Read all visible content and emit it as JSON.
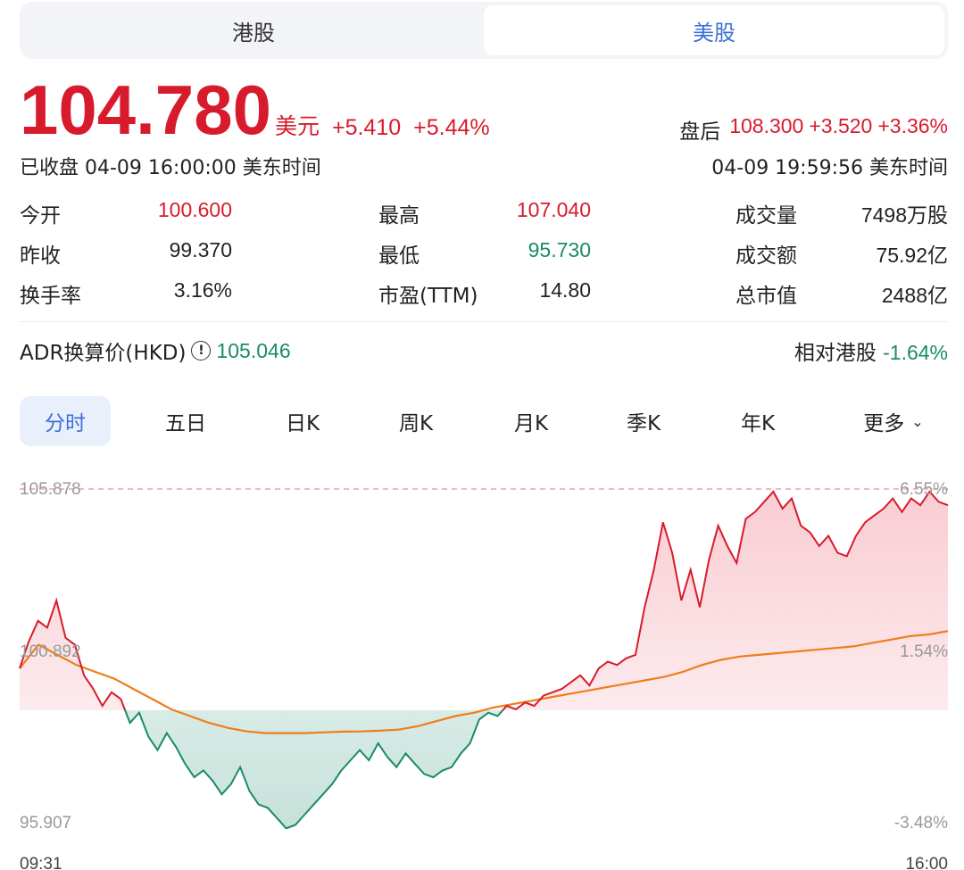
{
  "market_tabs": [
    {
      "label": "港股",
      "active": false
    },
    {
      "label": "美股",
      "active": true
    }
  ],
  "quote": {
    "price": "104.780",
    "currency": "美元",
    "change": "+5.410",
    "change_pct": "+5.44%",
    "status_time": "已收盘 04-09 16:00:00 美东时间",
    "after_hours": {
      "label": "盘后",
      "price": "108.300",
      "change": "+3.520",
      "change_pct": "+3.36%",
      "time": "04-09 19:59:56 美东时间"
    }
  },
  "stats": {
    "open": {
      "label": "今开",
      "value": "100.600"
    },
    "prev_close": {
      "label": "昨收",
      "value": "99.370"
    },
    "turnover_rate": {
      "label": "换手率",
      "value": "3.16%"
    },
    "high": {
      "label": "最高",
      "value": "107.040"
    },
    "low": {
      "label": "最低",
      "value": "95.730"
    },
    "pe": {
      "label": "市盈(TTM)",
      "value": "14.80"
    },
    "volume": {
      "label": "成交量",
      "value": "7498万股"
    },
    "amount": {
      "label": "成交额",
      "value": "75.92亿"
    },
    "market_cap": {
      "label": "总市值",
      "value": "2488亿"
    }
  },
  "adr": {
    "label": "ADR换算价(HKD)",
    "value": "105.046",
    "relative_label": "相对港股",
    "relative_value": "-1.64%"
  },
  "period_tabs": [
    "分时",
    "五日",
    "日K",
    "周K",
    "月K",
    "季K",
    "年K",
    "更多"
  ],
  "active_period": "分时",
  "colors": {
    "up": "#d81b2c",
    "down": "#1a8a6a",
    "accent": "#3b6fd8",
    "avg_line": "#ef7d1a"
  },
  "chart_data": {
    "type": "line",
    "x_start": "09:31",
    "x_end": "16:00",
    "y_max_label": "105.878",
    "y_mid_label": "100.892",
    "y_min_label": "95.907",
    "pct_max_label": "6.55%",
    "pct_mid_label": "1.54%",
    "pct_min_label": "-3.48%",
    "ylim": [
      95.907,
      105.878
    ],
    "reference_line": 105.878,
    "series": [
      {
        "values": [
          100.6,
          101.4,
          102.0,
          101.8,
          102.6,
          101.5,
          101.3,
          100.4,
          100.0,
          99.5,
          99.9,
          99.7,
          99.0,
          99.3,
          98.6,
          98.2,
          98.7,
          98.3,
          97.8,
          97.4,
          97.6,
          97.3,
          96.9,
          97.2,
          97.7,
          97.0,
          96.6,
          96.5,
          96.2,
          95.9,
          96.0,
          96.3,
          96.6,
          96.9,
          97.2,
          97.6,
          97.9,
          98.2,
          97.9,
          98.4,
          98.0,
          97.7,
          98.1,
          97.8,
          97.5,
          97.4,
          97.6,
          97.7,
          98.1,
          98.4,
          99.1,
          99.3,
          99.2,
          99.5,
          99.4,
          99.6,
          99.5,
          99.8,
          99.9,
          100.0,
          100.2,
          100.4,
          100.1,
          100.6,
          100.8,
          100.7,
          100.9,
          101.0,
          102.4,
          103.5,
          104.9,
          104.0,
          102.6,
          103.5,
          102.4,
          103.8,
          104.8,
          104.2,
          103.7,
          105.0,
          105.2,
          105.5,
          105.8,
          105.3,
          105.6,
          104.8,
          104.6,
          104.2,
          104.5,
          104.0,
          103.9,
          104.5,
          104.9,
          105.1,
          105.3,
          105.6,
          105.2,
          105.6,
          105.4,
          105.8,
          105.5,
          105.4
        ]
      },
      {
        "values": [
          100.6,
          101.3,
          101.0,
          100.7,
          100.5,
          100.3,
          100.0,
          99.7,
          99.4,
          99.2,
          99.0,
          98.85,
          98.75,
          98.7,
          98.7,
          98.7,
          98.72,
          98.74,
          98.75,
          98.77,
          98.8,
          98.9,
          99.05,
          99.2,
          99.3,
          99.45,
          99.55,
          99.65,
          99.75,
          99.85,
          99.95,
          100.05,
          100.15,
          100.25,
          100.35,
          100.5,
          100.7,
          100.85,
          100.95,
          101.0,
          101.05,
          101.1,
          101.15,
          101.2,
          101.25,
          101.35,
          101.45,
          101.55,
          101.6,
          101.7
        ]
      }
    ]
  }
}
